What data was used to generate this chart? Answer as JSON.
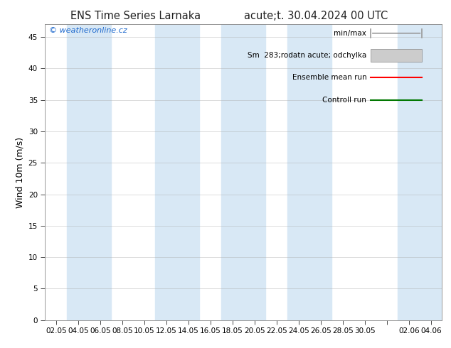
{
  "title_left": "ENS Time Series Larnaka",
  "title_right": "acute;t. 30.04.2024 00 UTC",
  "ylabel": "Wind 10m (m/s)",
  "watermark": "© weatheronline.cz",
  "ylim": [
    0,
    47
  ],
  "yticks": [
    0,
    5,
    10,
    15,
    20,
    25,
    30,
    35,
    40,
    45
  ],
  "x_labels": [
    "02.05",
    "04.05",
    "06.05",
    "08.05",
    "10.05",
    "12.05",
    "14.05",
    "16.05",
    "18.05",
    "20.05",
    "22.05",
    "24.05",
    "26.05",
    "28.05",
    "30.05",
    "",
    "02.06",
    "04.06"
  ],
  "background_color": "#ffffff",
  "band_color": "#d8e8f5",
  "band_alpha": 1.0,
  "title_fontsize": 10.5,
  "tick_fontsize": 7.5,
  "ylabel_fontsize": 9,
  "watermark_color": "#1a66cc",
  "grid_color": "#aaaaaa",
  "legend_color_minmax": "#999999",
  "legend_color_sm": "#cccccc",
  "legend_color_ensemble": "#ff0000",
  "legend_color_control": "#007700"
}
